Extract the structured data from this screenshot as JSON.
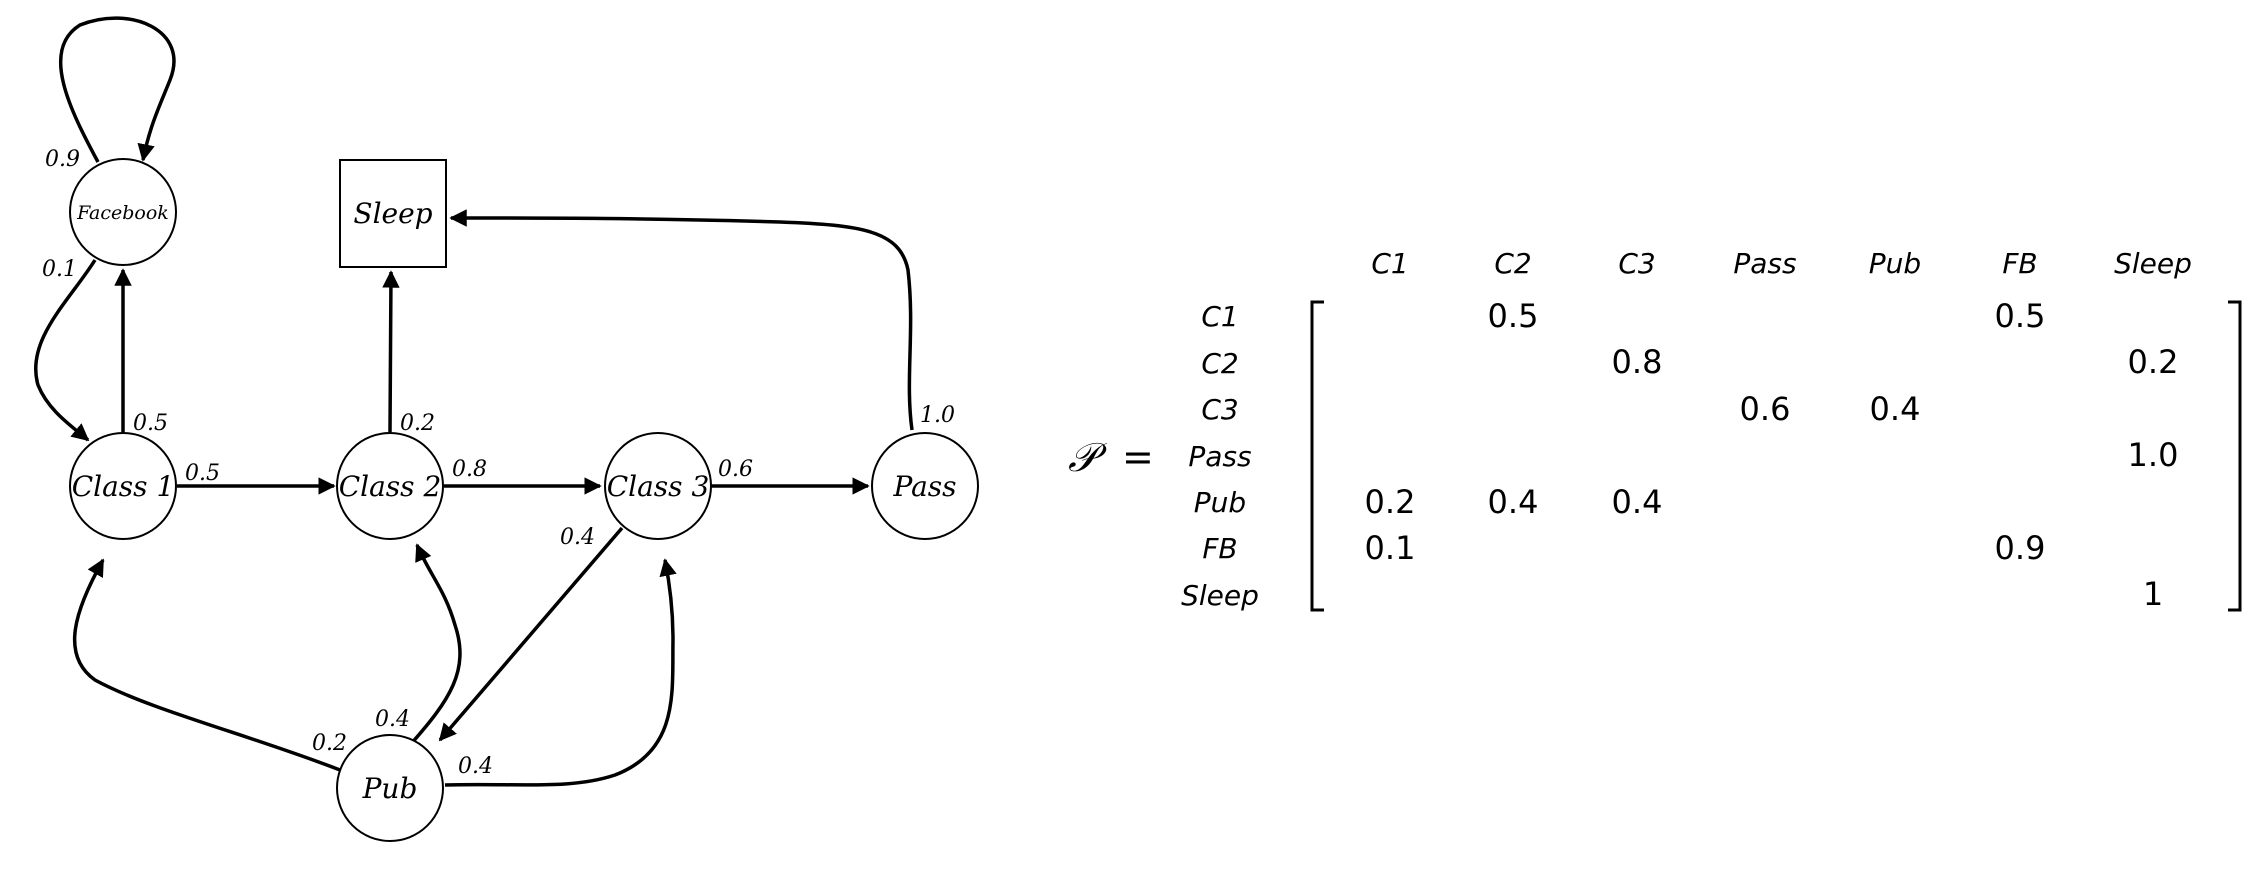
{
  "diagram": {
    "nodes": {
      "facebook": "Facebook",
      "sleep": "Sleep",
      "class1": "Class 1",
      "class2": "Class 2",
      "class3": "Class 3",
      "pass": "Pass",
      "pub": "Pub"
    },
    "edges": {
      "fb_self": "0.9",
      "fb_to_c1": "0.1",
      "c1_to_fb": "0.5",
      "c1_to_c2": "0.5",
      "c2_to_sleep": "0.2",
      "c2_to_c3": "0.8",
      "c3_to_pass": "0.6",
      "c3_to_pub": "0.4",
      "pass_to_sleep": "1.0",
      "pub_to_c1": "0.2",
      "pub_to_c2": "0.4",
      "pub_to_c3": "0.4"
    }
  },
  "matrix": {
    "symbol": "𝒫",
    "equals": "=",
    "col_headers": [
      "C1",
      "C2",
      "C3",
      "Pass",
      "Pub",
      "FB",
      "Sleep"
    ],
    "row_headers": [
      "C1",
      "C2",
      "C3",
      "Pass",
      "Pub",
      "FB",
      "Sleep"
    ],
    "rows": [
      [
        "",
        "0.5",
        "",
        "",
        "",
        "0.5",
        ""
      ],
      [
        "",
        "",
        "0.8",
        "",
        "",
        "",
        "0.2"
      ],
      [
        "",
        "",
        "",
        "0.6",
        "0.4",
        "",
        ""
      ],
      [
        "",
        "",
        "",
        "",
        "",
        "",
        "1.0"
      ],
      [
        "0.2",
        "0.4",
        "0.4",
        "",
        "",
        "",
        ""
      ],
      [
        "0.1",
        "",
        "",
        "",
        "",
        "0.9",
        ""
      ],
      [
        "",
        "",
        "",
        "",
        "",
        "",
        "1"
      ]
    ]
  }
}
